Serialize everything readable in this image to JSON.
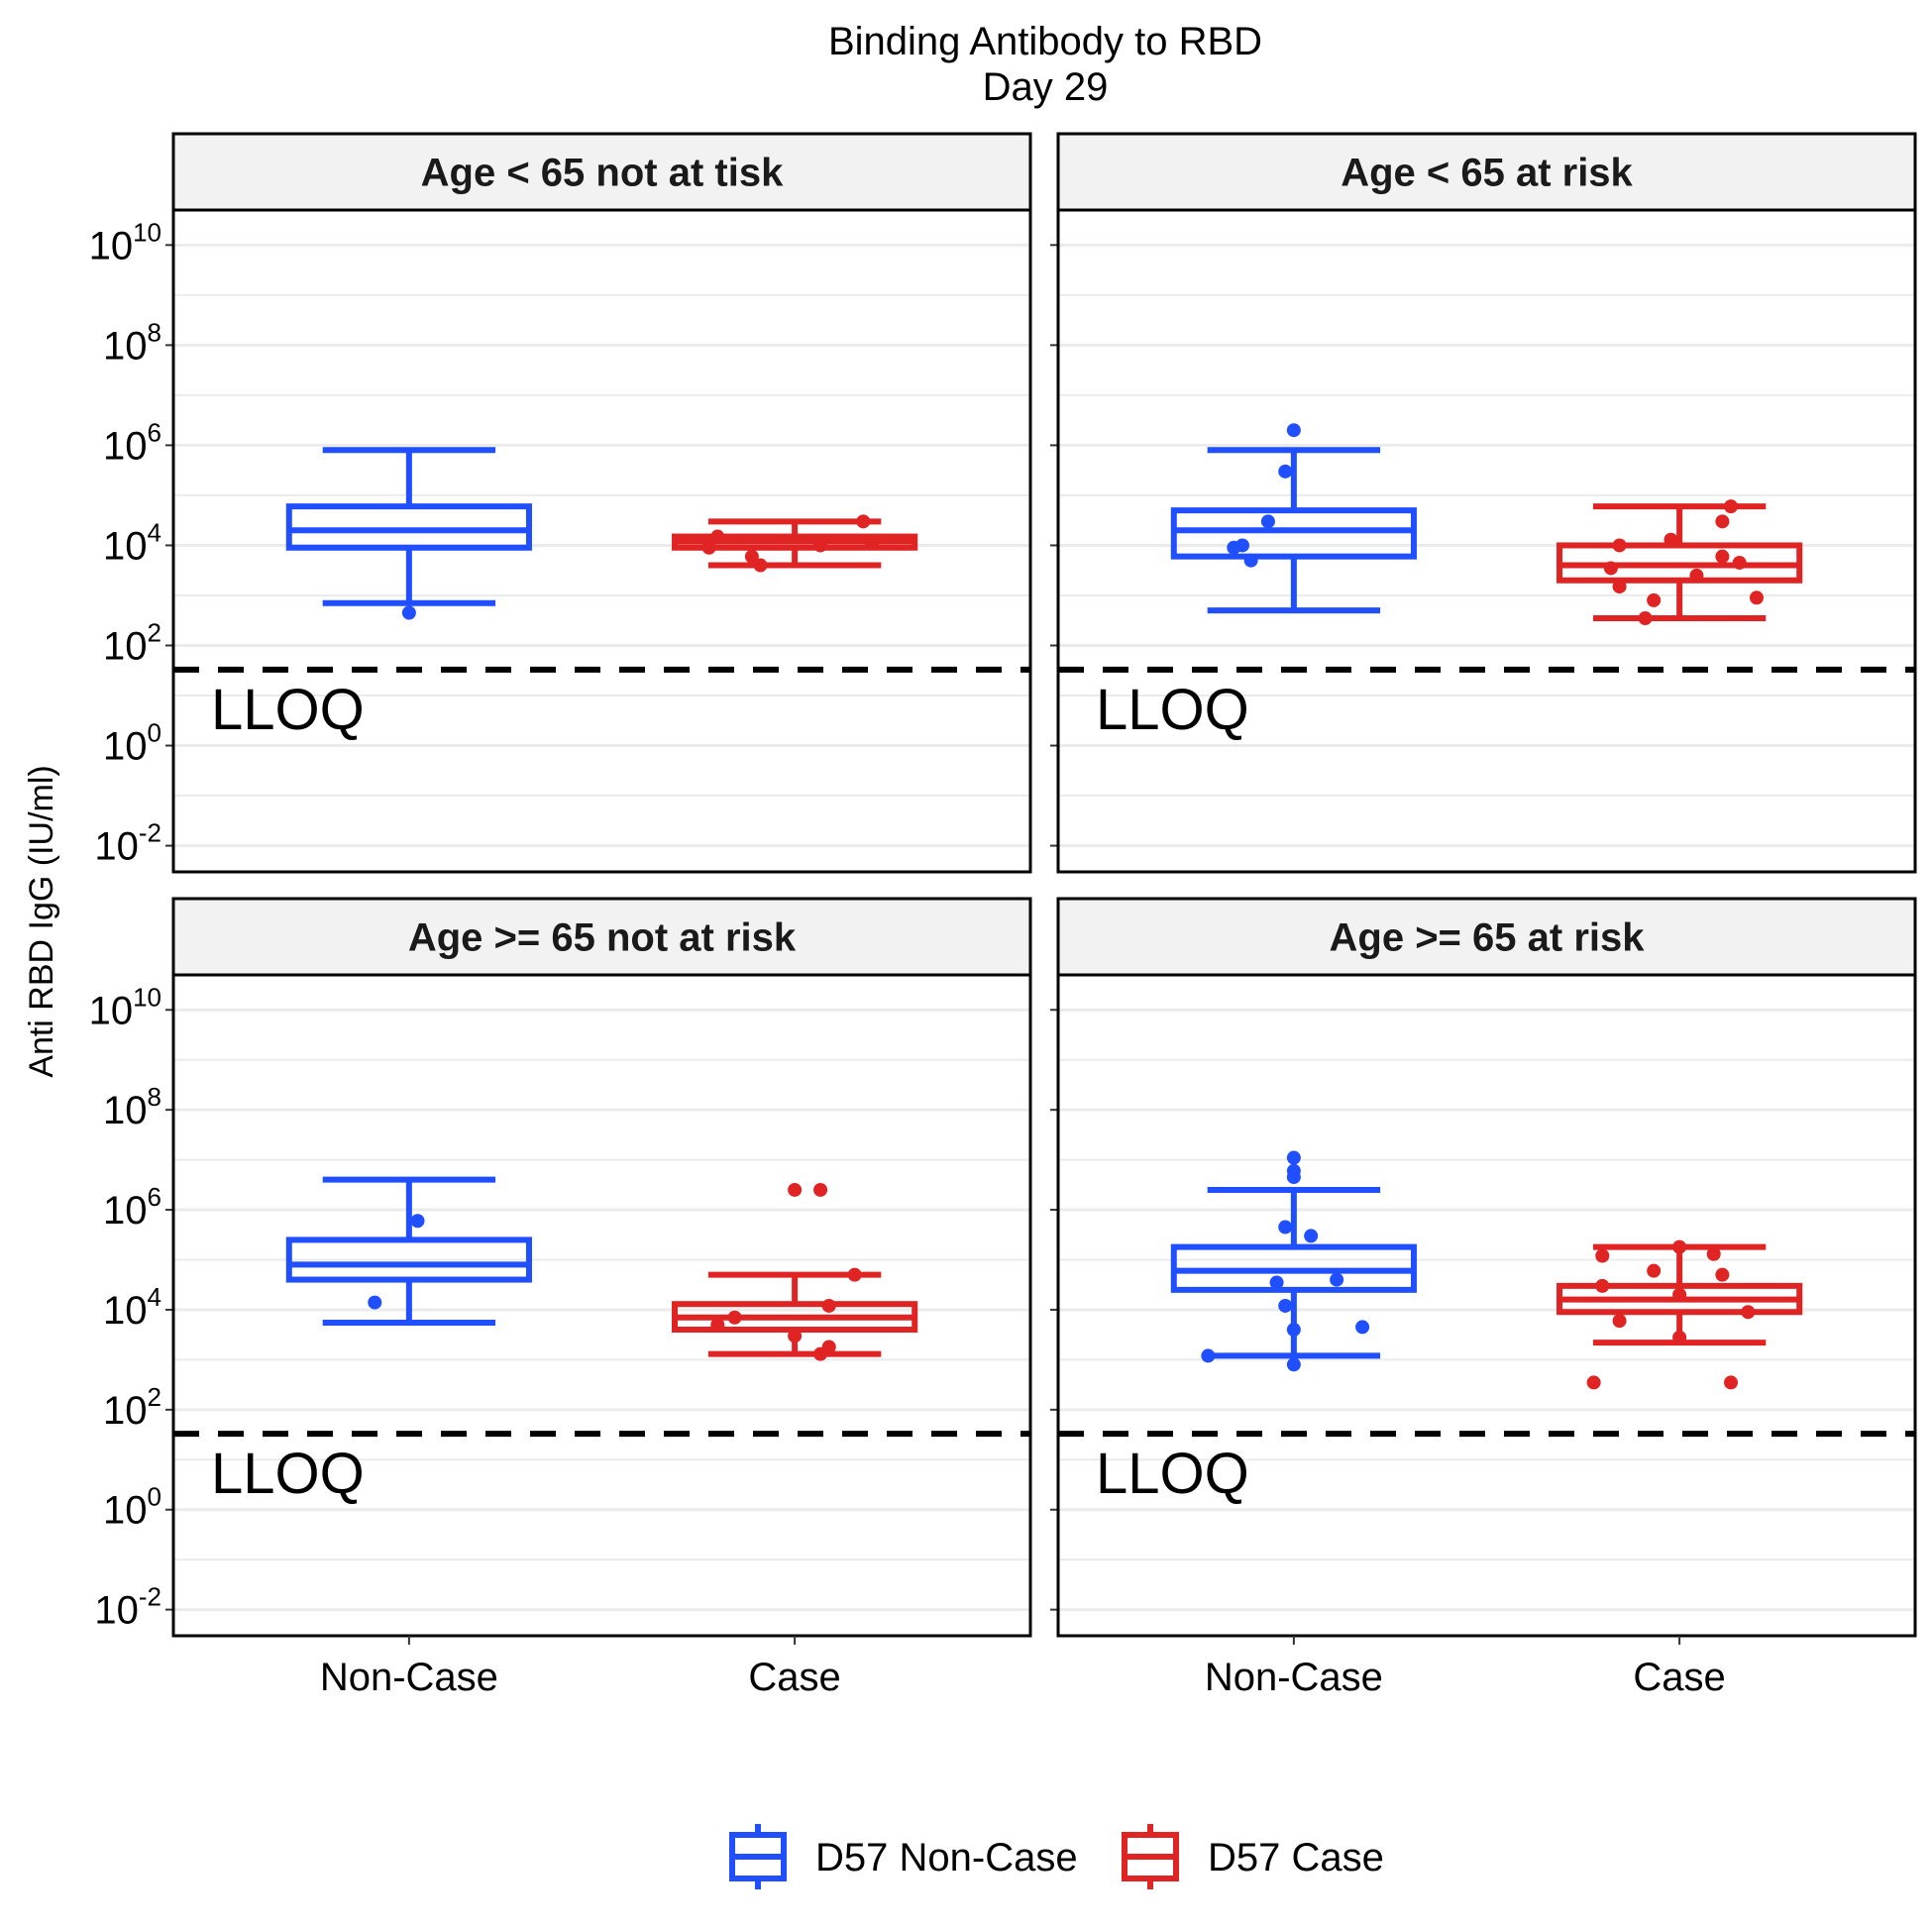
{
  "chart_data": {
    "type": "box",
    "title": "Binding Antibody to RBD",
    "subtitle": "Day 29",
    "ylabel": "Anti RBD IgG (IU/ml)",
    "y_scale": "log10",
    "ylim": [
      0.003,
      50000000000
    ],
    "y_ticks": [
      {
        "value": 0.01,
        "base": "10",
        "exp": "-2"
      },
      {
        "value": 1,
        "base": "10",
        "exp": "0"
      },
      {
        "value": 100,
        "base": "10",
        "exp": "2"
      },
      {
        "value": 10000,
        "base": "10",
        "exp": "4"
      },
      {
        "value": 1000000,
        "base": "10",
        "exp": "6"
      },
      {
        "value": 100000000,
        "base": "10",
        "exp": "8"
      },
      {
        "value": 10000000000,
        "base": "10",
        "exp": "10"
      }
    ],
    "categories": [
      "Non-Case",
      "Case"
    ],
    "reference_line": {
      "label": "LLOQ",
      "value": 33
    },
    "legend": {
      "position": "bottom",
      "entries": [
        {
          "label": "D57 Non-Case",
          "color": "#1f4fff"
        },
        {
          "label": "D57 Case",
          "color": "#e02424"
        }
      ]
    },
    "colors": {
      "non_case": "#1f4fff",
      "case": "#e02424",
      "reference": "#000000",
      "strip_bg": "#f2f2f2"
    },
    "panels": [
      {
        "label": "Age < 65 not at tisk",
        "boxes": [
          {
            "category": "Non-Case",
            "whisker_low": 700,
            "q1": 9000,
            "median": 20000,
            "q3": 60000,
            "whisker_high": 800000,
            "points": [
              {
                "x": 0.0,
                "y": 450
              }
            ]
          },
          {
            "category": "Case",
            "whisker_low": 4000,
            "q1": 9000,
            "median": 12000,
            "q3": 15000,
            "whisker_high": 30000,
            "points": [
              {
                "x": 0.08,
                "y": 30000
              },
              {
                "x": -0.05,
                "y": 6000
              },
              {
                "x": -0.09,
                "y": 15000
              },
              {
                "x": -0.04,
                "y": 4000
              },
              {
                "x": 0.03,
                "y": 10000
              },
              {
                "x": 0.09,
                "y": 11000
              },
              {
                "x": -0.1,
                "y": 9000
              }
            ]
          }
        ]
      },
      {
        "label": "Age < 65 at risk",
        "boxes": [
          {
            "category": "Non-Case",
            "whisker_low": 500,
            "q1": 6000,
            "median": 20000,
            "q3": 50000,
            "whisker_high": 800000,
            "points": [
              {
                "x": 0.0,
                "y": 2000000
              },
              {
                "x": -0.01,
                "y": 300000
              },
              {
                "x": -0.03,
                "y": 30000
              },
              {
                "x": -0.06,
                "y": 10000
              },
              {
                "x": -0.05,
                "y": 5000
              },
              {
                "x": -0.07,
                "y": 9000
              }
            ]
          },
          {
            "category": "Case",
            "whisker_low": 350,
            "q1": 2000,
            "median": 4000,
            "q3": 10000,
            "whisker_high": 60000,
            "points": [
              {
                "x": 0.06,
                "y": 60000
              },
              {
                "x": 0.05,
                "y": 30000
              },
              {
                "x": -0.07,
                "y": 10000
              },
              {
                "x": -0.01,
                "y": 13000
              },
              {
                "x": 0.05,
                "y": 6000
              },
              {
                "x": -0.08,
                "y": 3500
              },
              {
                "x": 0.02,
                "y": 2500
              },
              {
                "x": -0.07,
                "y": 1500
              },
              {
                "x": 0.09,
                "y": 900
              },
              {
                "x": -0.03,
                "y": 800
              },
              {
                "x": -0.04,
                "y": 350
              },
              {
                "x": 0.07,
                "y": 4500
              }
            ]
          }
        ]
      },
      {
        "label": "Age >= 65 not at risk",
        "boxes": [
          {
            "category": "Non-Case",
            "whisker_low": 5500,
            "q1": 40000,
            "median": 80000,
            "q3": 250000,
            "whisker_high": 4000000,
            "points": [
              {
                "x": 0.01,
                "y": 600000
              },
              {
                "x": -0.04,
                "y": 14000
              }
            ]
          },
          {
            "category": "Case",
            "whisker_low": 1300,
            "q1": 4000,
            "median": 7000,
            "q3": 13000,
            "whisker_high": 50000,
            "points": [
              {
                "x": 0.0,
                "y": 2500000
              },
              {
                "x": 0.03,
                "y": 2500000
              },
              {
                "x": 0.07,
                "y": 50000
              },
              {
                "x": 0.04,
                "y": 12000
              },
              {
                "x": -0.09,
                "y": 5000
              },
              {
                "x": 0.0,
                "y": 3000
              },
              {
                "x": 0.04,
                "y": 1800
              },
              {
                "x": 0.03,
                "y": 1300
              },
              {
                "x": -0.07,
                "y": 7000
              }
            ]
          }
        ]
      },
      {
        "label": "Age >= 65 at risk",
        "boxes": [
          {
            "category": "Non-Case",
            "whisker_low": 1200,
            "q1": 25000,
            "median": 60000,
            "q3": 180000,
            "whisker_high": 2500000,
            "points": [
              {
                "x": 0.0,
                "y": 11000000
              },
              {
                "x": 0.0,
                "y": 6000000
              },
              {
                "x": 0.0,
                "y": 4500000
              },
              {
                "x": -0.01,
                "y": 450000
              },
              {
                "x": 0.02,
                "y": 300000
              },
              {
                "x": -0.02,
                "y": 35000
              },
              {
                "x": 0.05,
                "y": 40000
              },
              {
                "x": -0.01,
                "y": 12000
              },
              {
                "x": 0.0,
                "y": 4000
              },
              {
                "x": 0.08,
                "y": 4500
              },
              {
                "x": -0.1,
                "y": 1200
              },
              {
                "x": 0.0,
                "y": 800
              }
            ]
          },
          {
            "category": "Case",
            "whisker_low": 2200,
            "q1": 9000,
            "median": 16000,
            "q3": 30000,
            "whisker_high": 180000,
            "points": [
              {
                "x": 0.0,
                "y": 180000
              },
              {
                "x": -0.09,
                "y": 120000
              },
              {
                "x": 0.04,
                "y": 130000
              },
              {
                "x": -0.03,
                "y": 60000
              },
              {
                "x": 0.05,
                "y": 50000
              },
              {
                "x": -0.09,
                "y": 30000
              },
              {
                "x": 0.0,
                "y": 20000
              },
              {
                "x": 0.08,
                "y": 9000
              },
              {
                "x": -0.07,
                "y": 6000
              },
              {
                "x": 0.0,
                "y": 2800
              },
              {
                "x": -0.1,
                "y": 350
              },
              {
                "x": 0.06,
                "y": 350
              }
            ]
          }
        ]
      }
    ]
  }
}
